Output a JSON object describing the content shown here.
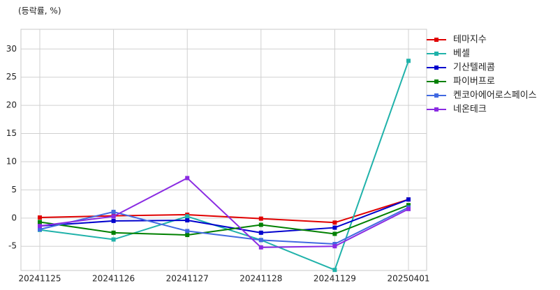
{
  "chart_data": {
    "type": "line",
    "title": "(등락률, %)",
    "categories": [
      "20241125",
      "20241126",
      "20241127",
      "20241128",
      "20241129",
      "20250401"
    ],
    "series": [
      {
        "name": "테마지수",
        "color": "#e00000",
        "values": [
          0.1,
          0.4,
          0.6,
          -0.1,
          -0.8,
          3.3
        ]
      },
      {
        "name": "베셀",
        "color": "#20b2aa",
        "values": [
          -2.1,
          -3.8,
          0.3,
          -3.9,
          -9.2,
          27.9
        ]
      },
      {
        "name": "기산텔레콤",
        "color": "#0000cd",
        "values": [
          -1.4,
          -0.5,
          -0.4,
          -2.6,
          -1.7,
          3.3
        ]
      },
      {
        "name": "파이버프로",
        "color": "#008000",
        "values": [
          -0.7,
          -2.6,
          -3.0,
          -1.2,
          -2.8,
          2.3
        ]
      },
      {
        "name": "켄코아에어로스페이스",
        "color": "#4169e1",
        "values": [
          -2.0,
          1.1,
          -2.3,
          -3.9,
          -4.6,
          1.9
        ]
      },
      {
        "name": "네온테크",
        "color": "#8a2be2",
        "values": [
          -1.4,
          0.3,
          7.1,
          -5.2,
          -5.0,
          1.6
        ]
      }
    ],
    "ylim": [
      -9.3,
      33.5
    ],
    "yticks": [
      -5,
      0,
      5,
      10,
      15,
      20,
      25,
      30
    ],
    "grid": true,
    "legend": "outside-right"
  }
}
